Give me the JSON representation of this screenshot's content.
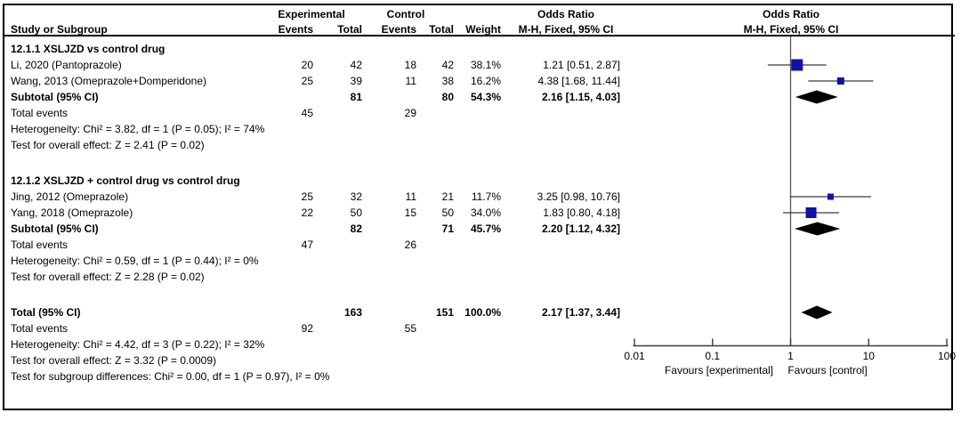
{
  "columns": {
    "study": "Study or Subgroup",
    "group_exp": "Experimental",
    "group_ctrl": "Control",
    "events": "Events",
    "total": "Total",
    "weight": "Weight",
    "or_title": "Odds Ratio",
    "or_method": "M-H, Fixed, 95% CI"
  },
  "plot_header": {
    "or_title": "Odds Ratio",
    "or_method": "M-H, Fixed, 95% CI"
  },
  "colors": {
    "square": "#1111a5",
    "diamond": "#000000",
    "ci_line": "#3a3a3a",
    "axis": "#3a3a3a",
    "null_line": "#555555",
    "text": "#000000",
    "border": "#000000"
  },
  "chart_data": {
    "type": "forest",
    "effect_measure": "Odds Ratio",
    "method": "M-H, Fixed, 95% CI",
    "x_scale": "log10",
    "x_ticks": [
      0.01,
      0.1,
      1,
      10,
      100
    ],
    "x_tick_labels": [
      "0.01",
      "0.1",
      "1",
      "10",
      "100"
    ],
    "favours_left": "Favours [experimental]",
    "favours_right": "Favours [control]",
    "rows": [
      {
        "kind": "group",
        "label": "12.1.1 XSLJZD vs control drug"
      },
      {
        "kind": "study",
        "label": "Li, 2020 (Pantoprazole)",
        "exp_events": "20",
        "exp_total": "42",
        "ctrl_events": "18",
        "ctrl_total": "42",
        "weight": "38.1%",
        "estimate_text": "1.21 [0.51, 2.87]",
        "or": 1.21,
        "lo": 0.51,
        "hi": 2.87,
        "wpct": 38.1
      },
      {
        "kind": "study",
        "label": "Wang, 2013 (Omeprazole+Domperidone)",
        "exp_events": "25",
        "exp_total": "39",
        "ctrl_events": "11",
        "ctrl_total": "38",
        "weight": "16.2%",
        "estimate_text": "4.38 [1.68, 11.44]",
        "or": 4.38,
        "lo": 1.68,
        "hi": 11.44,
        "wpct": 16.2
      },
      {
        "kind": "summary",
        "label": "Subtotal (95% CI)",
        "exp_total": "81",
        "ctrl_total": "80",
        "weight": "54.3%",
        "estimate_text": "2.16 [1.15, 4.03]",
        "or": 2.16,
        "lo": 1.15,
        "hi": 4.03
      },
      {
        "kind": "plain",
        "label": "Total events",
        "exp_events": "45",
        "ctrl_events": "29"
      },
      {
        "kind": "plain",
        "label": "Heterogeneity: Chi² = 3.82, df = 1 (P = 0.05); I² = 74%"
      },
      {
        "kind": "plain",
        "label": "Test for overall effect: Z = 2.41 (P = 0.02)"
      },
      {
        "kind": "spacer"
      },
      {
        "kind": "group",
        "label": "12.1.2 XSLJZD + control drug vs control drug"
      },
      {
        "kind": "study",
        "label": "Jing, 2012 (Omeprazole)",
        "exp_events": "25",
        "exp_total": "32",
        "ctrl_events": "11",
        "ctrl_total": "21",
        "weight": "11.7%",
        "estimate_text": "3.25 [0.98, 10.76]",
        "or": 3.25,
        "lo": 0.98,
        "hi": 10.76,
        "wpct": 11.7
      },
      {
        "kind": "study",
        "label": "Yang, 2018 (Omeprazole)",
        "exp_events": "22",
        "exp_total": "50",
        "ctrl_events": "15",
        "ctrl_total": "50",
        "weight": "34.0%",
        "estimate_text": "1.83 [0.80, 4.18]",
        "or": 1.83,
        "lo": 0.8,
        "hi": 4.18,
        "wpct": 34.0
      },
      {
        "kind": "summary",
        "label": "Subtotal (95% CI)",
        "exp_total": "82",
        "ctrl_total": "71",
        "weight": "45.7%",
        "estimate_text": "2.20 [1.12, 4.32]",
        "or": 2.2,
        "lo": 1.12,
        "hi": 4.32
      },
      {
        "kind": "plain",
        "label": "Total events",
        "exp_events": "47",
        "ctrl_events": "26"
      },
      {
        "kind": "plain",
        "label": "Heterogeneity: Chi² = 0.59, df = 1 (P = 0.44); I² = 0%"
      },
      {
        "kind": "plain",
        "label": "Test for overall effect: Z = 2.28 (P = 0.02)"
      },
      {
        "kind": "spacer"
      },
      {
        "kind": "summary",
        "label": "Total (95% CI)",
        "exp_total": "163",
        "ctrl_total": "151",
        "weight": "100.0%",
        "estimate_text": "2.17 [1.37, 3.44]",
        "or": 2.17,
        "lo": 1.37,
        "hi": 3.44
      },
      {
        "kind": "plain",
        "label": "Total events",
        "exp_events": "92",
        "ctrl_events": "55"
      },
      {
        "kind": "plain",
        "label": "Heterogeneity: Chi² = 4.42, df = 3 (P = 0.22); I² = 32%"
      },
      {
        "kind": "plain",
        "label": "Test for overall effect: Z = 3.32 (P = 0.0009)"
      },
      {
        "kind": "plain",
        "label": "Test for subgroup differences: Chi² = 0.00, df = 1 (P = 0.97), I² = 0%"
      }
    ]
  }
}
